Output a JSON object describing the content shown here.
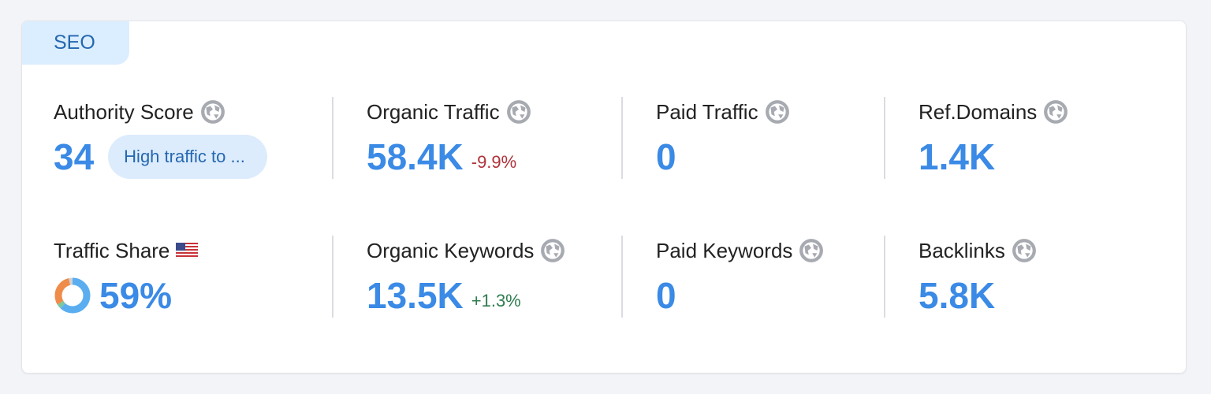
{
  "tab": "SEO",
  "metrics": [
    {
      "label": "Authority Score",
      "value": "34",
      "badge": "High traffic to ..."
    },
    {
      "label": "Organic Traffic",
      "value": "58.4K",
      "change": "-9.9%"
    },
    {
      "label": "Paid Traffic",
      "value": "0"
    },
    {
      "label": "Ref.Domains",
      "value": "1.4K"
    },
    {
      "label": "Traffic Share",
      "value": "59%"
    },
    {
      "label": "Organic Keywords",
      "value": "13.5K",
      "change": "+1.3%"
    },
    {
      "label": "Paid Keywords",
      "value": "0"
    },
    {
      "label": "Backlinks",
      "value": "5.8K"
    }
  ]
}
